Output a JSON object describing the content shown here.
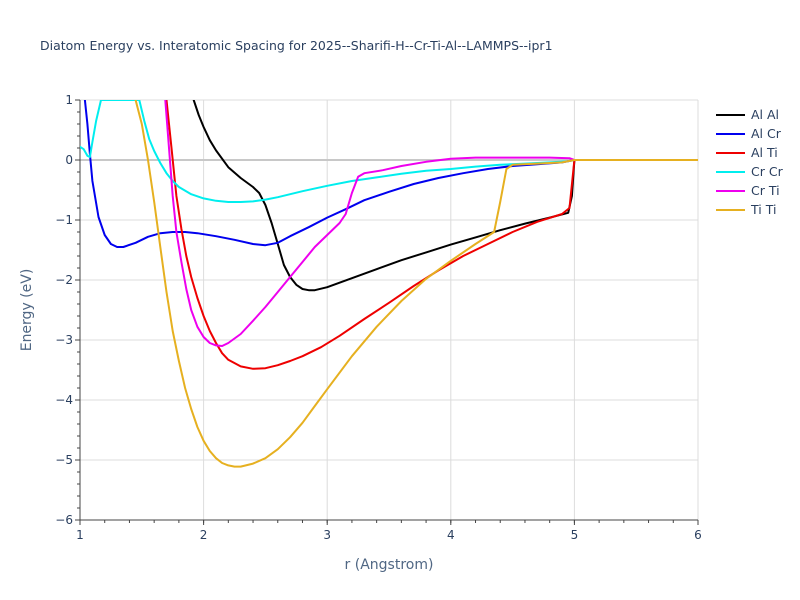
{
  "chart_data": {
    "type": "line",
    "title": "Diatom Energy vs. Interatomic Spacing for 2025--Sharifi-H--Cr-Ti-Al--LAMMPS--ipr1",
    "xlabel": "r (Angstrom)",
    "ylabel": "Energy (eV)",
    "xlim": [
      1,
      6
    ],
    "ylim": [
      -6,
      1
    ],
    "xticks": [
      "1",
      "2",
      "3",
      "4",
      "5",
      "6"
    ],
    "yticks": [
      "1",
      "0",
      "−1",
      "−2",
      "−3",
      "−4",
      "−5",
      "−6"
    ],
    "grid": true,
    "legend_position": "top-right",
    "series": [
      {
        "name": "Al Al",
        "color": "#000000",
        "points": [
          [
            1.92,
            1.0
          ],
          [
            1.96,
            0.75
          ],
          [
            2.0,
            0.55
          ],
          [
            2.05,
            0.33
          ],
          [
            2.1,
            0.16
          ],
          [
            2.2,
            -0.12
          ],
          [
            2.3,
            -0.3
          ],
          [
            2.4,
            -0.45
          ],
          [
            2.45,
            -0.55
          ],
          [
            2.5,
            -0.75
          ],
          [
            2.55,
            -1.05
          ],
          [
            2.6,
            -1.4
          ],
          [
            2.65,
            -1.75
          ],
          [
            2.7,
            -1.95
          ],
          [
            2.75,
            -2.08
          ],
          [
            2.8,
            -2.15
          ],
          [
            2.85,
            -2.17
          ],
          [
            2.9,
            -2.17
          ],
          [
            3.0,
            -2.12
          ],
          [
            3.2,
            -1.97
          ],
          [
            3.4,
            -1.82
          ],
          [
            3.6,
            -1.67
          ],
          [
            3.8,
            -1.54
          ],
          [
            4.0,
            -1.41
          ],
          [
            4.2,
            -1.29
          ],
          [
            4.4,
            -1.17
          ],
          [
            4.6,
            -1.06
          ],
          [
            4.8,
            -0.96
          ],
          [
            4.95,
            -0.88
          ],
          [
            4.98,
            -0.6
          ],
          [
            5.0,
            0.0
          ],
          [
            6.0,
            0.0
          ]
        ]
      },
      {
        "name": "Al Cr",
        "color": "#0000ee",
        "points": [
          [
            1.04,
            1.0
          ],
          [
            1.06,
            0.6
          ],
          [
            1.08,
            0.1
          ],
          [
            1.1,
            -0.35
          ],
          [
            1.15,
            -0.95
          ],
          [
            1.2,
            -1.25
          ],
          [
            1.25,
            -1.4
          ],
          [
            1.3,
            -1.45
          ],
          [
            1.35,
            -1.45
          ],
          [
            1.45,
            -1.38
          ],
          [
            1.55,
            -1.28
          ],
          [
            1.65,
            -1.22
          ],
          [
            1.75,
            -1.2
          ],
          [
            1.85,
            -1.2
          ],
          [
            1.95,
            -1.22
          ],
          [
            2.1,
            -1.27
          ],
          [
            2.25,
            -1.33
          ],
          [
            2.4,
            -1.4
          ],
          [
            2.5,
            -1.42
          ],
          [
            2.6,
            -1.38
          ],
          [
            2.7,
            -1.27
          ],
          [
            2.85,
            -1.12
          ],
          [
            3.0,
            -0.96
          ],
          [
            3.15,
            -0.82
          ],
          [
            3.3,
            -0.67
          ],
          [
            3.5,
            -0.53
          ],
          [
            3.7,
            -0.4
          ],
          [
            3.9,
            -0.3
          ],
          [
            4.1,
            -0.22
          ],
          [
            4.3,
            -0.15
          ],
          [
            4.5,
            -0.1
          ],
          [
            4.7,
            -0.07
          ],
          [
            4.9,
            -0.04
          ],
          [
            5.0,
            0.0
          ],
          [
            6.0,
            0.0
          ]
        ]
      },
      {
        "name": "Al Ti",
        "color": "#ee0000",
        "points": [
          [
            1.7,
            1.0
          ],
          [
            1.74,
            0.2
          ],
          [
            1.78,
            -0.6
          ],
          [
            1.82,
            -1.15
          ],
          [
            1.86,
            -1.6
          ],
          [
            1.9,
            -1.95
          ],
          [
            1.95,
            -2.3
          ],
          [
            2.0,
            -2.6
          ],
          [
            2.05,
            -2.85
          ],
          [
            2.1,
            -3.05
          ],
          [
            2.15,
            -3.22
          ],
          [
            2.2,
            -3.33
          ],
          [
            2.3,
            -3.44
          ],
          [
            2.4,
            -3.48
          ],
          [
            2.5,
            -3.47
          ],
          [
            2.6,
            -3.42
          ],
          [
            2.7,
            -3.35
          ],
          [
            2.8,
            -3.27
          ],
          [
            2.95,
            -3.12
          ],
          [
            3.1,
            -2.93
          ],
          [
            3.3,
            -2.65
          ],
          [
            3.5,
            -2.38
          ],
          [
            3.7,
            -2.1
          ],
          [
            3.9,
            -1.84
          ],
          [
            4.1,
            -1.6
          ],
          [
            4.3,
            -1.4
          ],
          [
            4.5,
            -1.2
          ],
          [
            4.7,
            -1.03
          ],
          [
            4.9,
            -0.9
          ],
          [
            4.96,
            -0.8
          ],
          [
            5.0,
            0.0
          ],
          [
            6.0,
            0.0
          ]
        ]
      },
      {
        "name": "Cr Cr",
        "color": "#00eeee",
        "points": [
          [
            1.0,
            0.22
          ],
          [
            1.03,
            0.18
          ],
          [
            1.06,
            0.07
          ],
          [
            1.08,
            0.05
          ],
          [
            1.1,
            0.3
          ],
          [
            1.13,
            0.65
          ],
          [
            1.17,
            1.0
          ],
          [
            1.48,
            1.0
          ],
          [
            1.52,
            0.65
          ],
          [
            1.56,
            0.35
          ],
          [
            1.6,
            0.15
          ],
          [
            1.65,
            -0.05
          ],
          [
            1.7,
            -0.22
          ],
          [
            1.75,
            -0.35
          ],
          [
            1.8,
            -0.45
          ],
          [
            1.9,
            -0.57
          ],
          [
            2.0,
            -0.64
          ],
          [
            2.1,
            -0.68
          ],
          [
            2.2,
            -0.7
          ],
          [
            2.3,
            -0.7
          ],
          [
            2.4,
            -0.69
          ],
          [
            2.5,
            -0.66
          ],
          [
            2.6,
            -0.62
          ],
          [
            2.8,
            -0.52
          ],
          [
            3.0,
            -0.43
          ],
          [
            3.2,
            -0.35
          ],
          [
            3.4,
            -0.29
          ],
          [
            3.6,
            -0.23
          ],
          [
            3.8,
            -0.18
          ],
          [
            4.0,
            -0.15
          ],
          [
            4.2,
            -0.11
          ],
          [
            4.4,
            -0.08
          ],
          [
            4.6,
            -0.06
          ],
          [
            4.8,
            -0.04
          ],
          [
            4.95,
            -0.02
          ],
          [
            5.0,
            0.0
          ],
          [
            6.0,
            0.0
          ]
        ]
      },
      {
        "name": "Cr Ti",
        "color": "#ee00ee",
        "points": [
          [
            1.69,
            1.0
          ],
          [
            1.72,
            0.2
          ],
          [
            1.75,
            -0.6
          ],
          [
            1.78,
            -1.2
          ],
          [
            1.82,
            -1.7
          ],
          [
            1.86,
            -2.15
          ],
          [
            1.9,
            -2.5
          ],
          [
            1.95,
            -2.78
          ],
          [
            2.0,
            -2.95
          ],
          [
            2.05,
            -3.05
          ],
          [
            2.1,
            -3.09
          ],
          [
            2.15,
            -3.1
          ],
          [
            2.2,
            -3.05
          ],
          [
            2.3,
            -2.9
          ],
          [
            2.4,
            -2.68
          ],
          [
            2.5,
            -2.45
          ],
          [
            2.6,
            -2.2
          ],
          [
            2.7,
            -1.95
          ],
          [
            2.8,
            -1.7
          ],
          [
            2.9,
            -1.45
          ],
          [
            3.0,
            -1.25
          ],
          [
            3.1,
            -1.05
          ],
          [
            3.15,
            -0.9
          ],
          [
            3.2,
            -0.55
          ],
          [
            3.25,
            -0.28
          ],
          [
            3.3,
            -0.22
          ],
          [
            3.45,
            -0.17
          ],
          [
            3.6,
            -0.1
          ],
          [
            3.8,
            -0.03
          ],
          [
            4.0,
            0.02
          ],
          [
            4.2,
            0.04
          ],
          [
            4.5,
            0.04
          ],
          [
            4.8,
            0.04
          ],
          [
            4.96,
            0.03
          ],
          [
            5.0,
            0.0
          ],
          [
            6.0,
            0.0
          ]
        ]
      },
      {
        "name": "Ti Ti",
        "color": "#e6b020",
        "points": [
          [
            1.45,
            1.0
          ],
          [
            1.5,
            0.6
          ],
          [
            1.55,
            0.0
          ],
          [
            1.6,
            -0.7
          ],
          [
            1.65,
            -1.45
          ],
          [
            1.7,
            -2.2
          ],
          [
            1.75,
            -2.85
          ],
          [
            1.8,
            -3.35
          ],
          [
            1.85,
            -3.8
          ],
          [
            1.9,
            -4.15
          ],
          [
            1.95,
            -4.45
          ],
          [
            2.0,
            -4.68
          ],
          [
            2.05,
            -4.85
          ],
          [
            2.1,
            -4.97
          ],
          [
            2.15,
            -5.05
          ],
          [
            2.2,
            -5.09
          ],
          [
            2.25,
            -5.11
          ],
          [
            2.3,
            -5.11
          ],
          [
            2.4,
            -5.06
          ],
          [
            2.5,
            -4.97
          ],
          [
            2.6,
            -4.82
          ],
          [
            2.7,
            -4.62
          ],
          [
            2.8,
            -4.38
          ],
          [
            2.9,
            -4.1
          ],
          [
            3.0,
            -3.82
          ],
          [
            3.2,
            -3.27
          ],
          [
            3.4,
            -2.78
          ],
          [
            3.6,
            -2.35
          ],
          [
            3.8,
            -1.98
          ],
          [
            4.0,
            -1.68
          ],
          [
            4.2,
            -1.4
          ],
          [
            4.35,
            -1.2
          ],
          [
            4.4,
            -0.7
          ],
          [
            4.45,
            -0.15
          ],
          [
            4.5,
            -0.08
          ],
          [
            4.7,
            -0.06
          ],
          [
            4.9,
            -0.04
          ],
          [
            5.0,
            0.0
          ],
          [
            6.0,
            0.0
          ]
        ]
      }
    ]
  }
}
